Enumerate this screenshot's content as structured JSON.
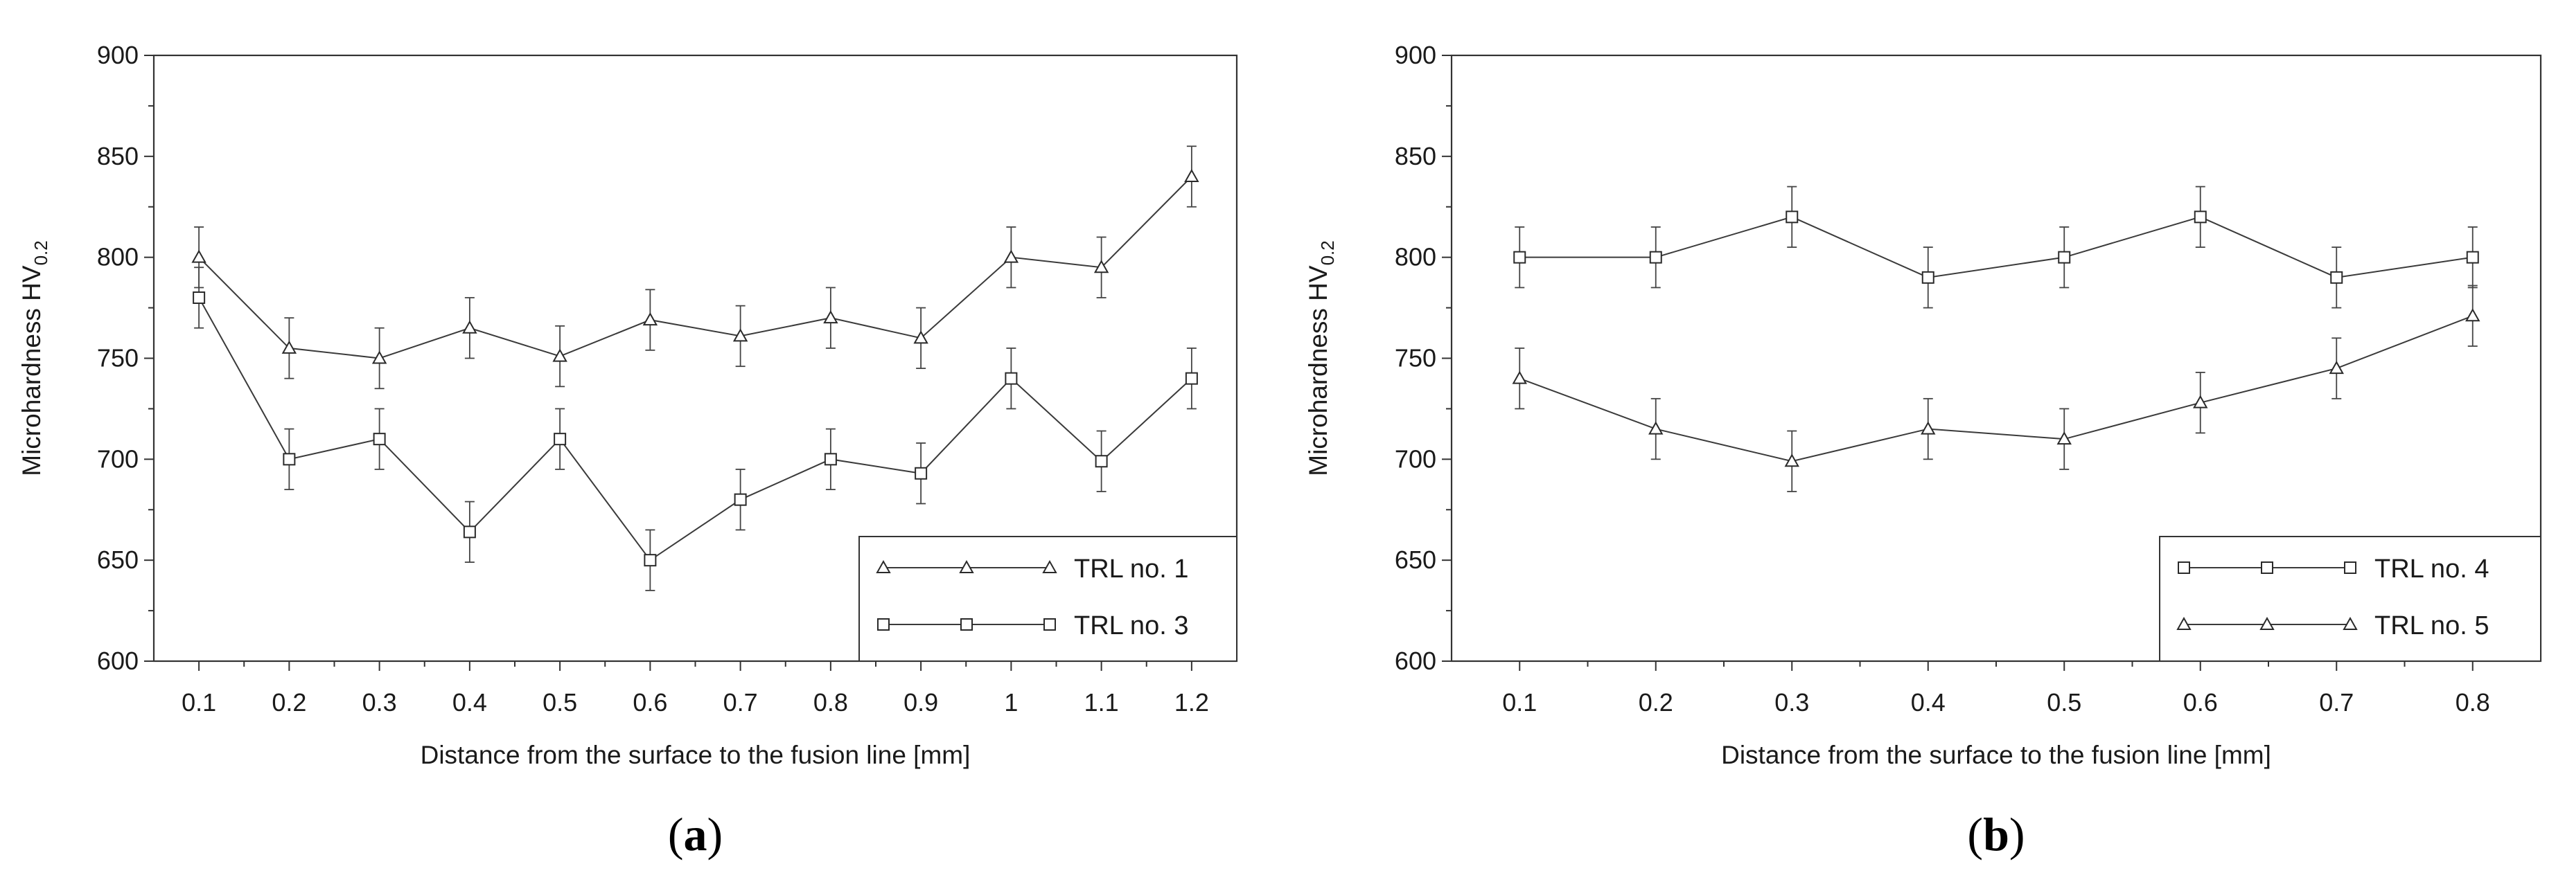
{
  "chart_data": [
    {
      "type": "line",
      "panel_label": "a",
      "xlabel": "Distance from the surface to the fusion line [mm]",
      "ylabel_main": "Microhardness HV",
      "ylabel_sub": "0.2",
      "x": [
        0.1,
        0.2,
        0.3,
        0.4,
        0.5,
        0.6,
        0.7,
        0.8,
        0.9,
        1.0,
        1.1,
        1.2
      ],
      "x_tick_labels": [
        "0.1",
        "0.2",
        "0.3",
        "0.4",
        "0.5",
        "0.6",
        "0.7",
        "0.8",
        "0.9",
        "1",
        "1.1",
        "1.2"
      ],
      "xlim": [
        0.05,
        1.25
      ],
      "ylim": [
        600,
        900
      ],
      "y_ticks": [
        600,
        650,
        700,
        750,
        800,
        850,
        900
      ],
      "y_tick_labels": [
        "600",
        "650",
        "700",
        "750",
        "800",
        "850",
        "900"
      ],
      "error": 15,
      "legend_position": "bottom-right",
      "series": [
        {
          "name": "TRL no. 1",
          "marker": "triangle",
          "values": [
            800,
            755,
            750,
            765,
            751,
            769,
            761,
            770,
            760,
            800,
            795,
            840
          ]
        },
        {
          "name": "TRL no. 3",
          "marker": "square",
          "values": [
            780,
            700,
            710,
            664,
            710,
            650,
            680,
            700,
            693,
            740,
            699,
            740
          ]
        }
      ]
    },
    {
      "type": "line",
      "panel_label": "b",
      "xlabel": "Distance from the surface to the fusion line [mm]",
      "ylabel_main": "Microhardness HV",
      "ylabel_sub": "0.2",
      "x": [
        0.1,
        0.2,
        0.3,
        0.4,
        0.5,
        0.6,
        0.7,
        0.8
      ],
      "x_tick_labels": [
        "0.1",
        "0.2",
        "0.3",
        "0.4",
        "0.5",
        "0.6",
        "0.7",
        "0.8"
      ],
      "xlim": [
        0.05,
        0.85
      ],
      "ylim": [
        600,
        900
      ],
      "y_ticks": [
        600,
        650,
        700,
        750,
        800,
        850,
        900
      ],
      "y_tick_labels": [
        "600",
        "650",
        "700",
        "750",
        "800",
        "850",
        "900"
      ],
      "error": 15,
      "legend_position": "bottom-right",
      "series": [
        {
          "name": "TRL no. 4",
          "marker": "square",
          "values": [
            800,
            800,
            820,
            790,
            800,
            820,
            790,
            800
          ]
        },
        {
          "name": "TRL no. 5",
          "marker": "triangle",
          "values": [
            740,
            715,
            699,
            715,
            710,
            728,
            745,
            771
          ]
        }
      ]
    }
  ]
}
